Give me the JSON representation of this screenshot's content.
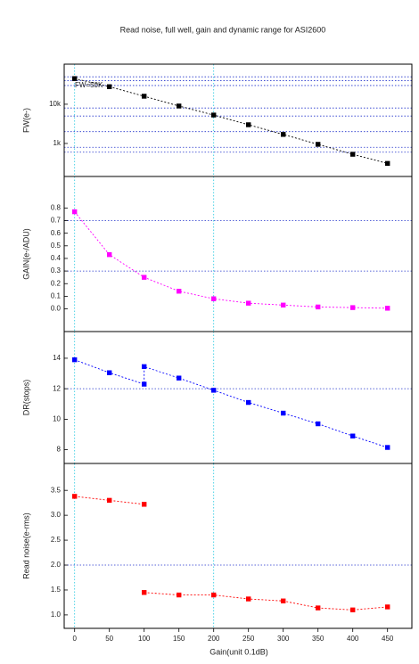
{
  "chart_data": {
    "type": "line",
    "title": "Read noise, full well, gain and dynamic range for ASI2600",
    "x_label": "Gain(unit 0.1dB)",
    "xlim": [
      -15,
      485
    ],
    "xticks": [
      0,
      50,
      100,
      150,
      200,
      250,
      300,
      350,
      400,
      450
    ],
    "vlines": [
      0,
      200
    ],
    "panels": [
      {
        "y_label": "FW(e-)",
        "log": true,
        "ylim": [
          144,
          105000
        ],
        "yticks": [
          {
            "value": 1000,
            "label": "1k"
          },
          {
            "value": 10000,
            "label": "10k"
          }
        ],
        "hlines": [
          50000,
          40000,
          30000,
          8000,
          5000,
          2000,
          800,
          600
        ],
        "annotation": "FW=50K",
        "color": "#000000",
        "x": [
          0,
          50,
          100,
          150,
          200,
          250,
          300,
          350,
          400,
          450
        ],
        "values": [
          45000,
          28000,
          16000,
          9000,
          5300,
          3000,
          1700,
          950,
          530,
          310
        ]
      },
      {
        "y_label": "GAIN(e-/ADU)",
        "log": false,
        "ylim": [
          -0.18,
          1.05
        ],
        "yticks": [
          {
            "value": 0,
            "label": "0.0"
          },
          0.1,
          0.2,
          0.3,
          0.4,
          0.5,
          0.6,
          0.7,
          0.8
        ],
        "hlines": [
          0.7,
          0.3
        ],
        "color": "#ff00ff",
        "x": [
          0,
          50,
          100,
          150,
          200,
          250,
          300,
          350,
          400,
          450
        ],
        "values": [
          0.77,
          0.43,
          0.25,
          0.14,
          0.08,
          0.045,
          0.03,
          0.015,
          0.01,
          0.005
        ]
      },
      {
        "y_label": "DR(stops)",
        "log": false,
        "ylim": [
          7.1,
          15.75
        ],
        "yticks": [
          8,
          10,
          12,
          14
        ],
        "hlines": [
          12
        ],
        "color": "#0000ff",
        "x": [
          0,
          50,
          100,
          100,
          150,
          200,
          250,
          300,
          350,
          400,
          450
        ],
        "values": [
          13.9,
          13.05,
          12.3,
          13.45,
          12.7,
          11.9,
          11.1,
          10.4,
          9.7,
          8.9,
          8.15
        ]
      },
      {
        "y_label": "Read noise(e-rms)",
        "log": false,
        "ylim": [
          0.73,
          4.04
        ],
        "yticks": [
          {
            "value": 1,
            "label": "1.0"
          },
          1.5,
          {
            "value": 2,
            "label": "2.0"
          },
          2.5,
          {
            "value": 3,
            "label": "3.0"
          },
          3.5
        ],
        "hlines": [
          2
        ],
        "color": "#ff0000",
        "x": [
          0,
          50,
          100,
          null,
          100,
          150,
          200,
          250,
          300,
          350,
          400,
          450
        ],
        "values": [
          3.38,
          3.3,
          3.22,
          null,
          1.45,
          1.4,
          1.4,
          1.32,
          1.28,
          1.14,
          1.1,
          1.16
        ]
      }
    ]
  }
}
